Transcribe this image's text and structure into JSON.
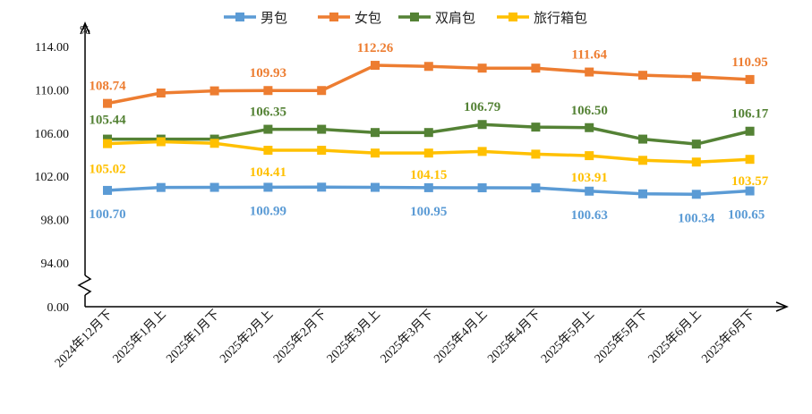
{
  "chart_data": {
    "type": "line",
    "unit_label": "%",
    "categories": [
      "2024年12月下",
      "2025年1月上",
      "2025年1月下",
      "2025年2月上",
      "2025年2月下",
      "2025年3月上",
      "2025年3月下",
      "2025年4月上",
      "2025年4月下",
      "2025年5月上",
      "2025年5月下",
      "2025年6月上",
      "2025年6月下"
    ],
    "y_tick_labels": [
      "0.00",
      "94.00",
      "98.00",
      "102.00",
      "106.00",
      "110.00",
      "114.00"
    ],
    "ylim": [
      94,
      114
    ],
    "axis_break": true,
    "legend_position": "top-center",
    "series": [
      {
        "name": "男包",
        "color": "#5b9bd5",
        "values": [
          100.7,
          100.97,
          100.98,
          100.99,
          101.0,
          100.98,
          100.95,
          100.94,
          100.93,
          100.63,
          100.38,
          100.34,
          100.65
        ],
        "labels": [
          {
            "index": 0,
            "text": "100.70"
          },
          {
            "index": 3,
            "text": "100.99"
          },
          {
            "index": 6,
            "text": "100.95"
          },
          {
            "index": 9,
            "text": "100.63"
          },
          {
            "index": 11,
            "text": "100.34"
          },
          {
            "index": 12,
            "text": "100.65"
          }
        ]
      },
      {
        "name": "女包",
        "color": "#ed7d31",
        "values": [
          108.74,
          109.7,
          109.9,
          109.93,
          109.93,
          112.26,
          112.16,
          112.0,
          112.0,
          111.64,
          111.34,
          111.2,
          110.95
        ],
        "labels": [
          {
            "index": 0,
            "text": "108.74"
          },
          {
            "index": 3,
            "text": "109.93"
          },
          {
            "index": 5,
            "text": "112.26"
          },
          {
            "index": 9,
            "text": "111.64"
          },
          {
            "index": 12,
            "text": "110.95"
          }
        ]
      },
      {
        "name": "双肩包",
        "color": "#548235",
        "values": [
          105.44,
          105.44,
          105.44,
          106.35,
          106.35,
          106.05,
          106.05,
          106.79,
          106.55,
          106.5,
          105.44,
          104.98,
          106.17
        ],
        "labels": [
          {
            "index": 0,
            "text": "105.44"
          },
          {
            "index": 3,
            "text": "106.35"
          },
          {
            "index": 7,
            "text": "106.79"
          },
          {
            "index": 9,
            "text": "106.50"
          },
          {
            "index": 12,
            "text": "106.17"
          }
        ]
      },
      {
        "name": "旅行箱包",
        "color": "#ffc000",
        "values": [
          105.02,
          105.2,
          105.05,
          104.41,
          104.41,
          104.15,
          104.15,
          104.3,
          104.05,
          103.91,
          103.48,
          103.32,
          103.57
        ],
        "labels": [
          {
            "index": 0,
            "text": "105.02"
          },
          {
            "index": 3,
            "text": "104.41"
          },
          {
            "index": 6,
            "text": "104.15"
          },
          {
            "index": 9,
            "text": "103.91"
          },
          {
            "index": 12,
            "text": "103.57"
          }
        ]
      }
    ]
  }
}
